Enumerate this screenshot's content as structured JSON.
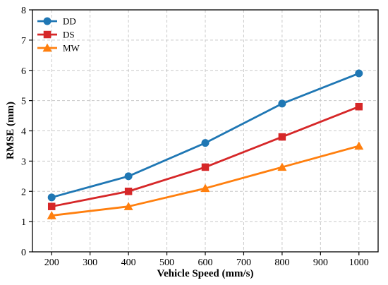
{
  "chart_data": {
    "type": "line",
    "title": "",
    "xlabel": "Vehicle Speed (mm/s)",
    "ylabel": "RMSE (mm)",
    "x": [
      200,
      400,
      600,
      800,
      1000
    ],
    "xlim": [
      150,
      1050
    ],
    "ylim": [
      0,
      8
    ],
    "xticks": [
      200,
      300,
      400,
      500,
      600,
      700,
      800,
      900,
      1000
    ],
    "yticks": [
      0,
      1,
      2,
      3,
      4,
      5,
      6,
      7,
      8
    ],
    "grid": true,
    "legend_position": "top-left",
    "series": [
      {
        "name": "DD",
        "color": "#1f77b4",
        "marker": "circle",
        "values": [
          1.8,
          2.5,
          3.6,
          4.9,
          5.9
        ]
      },
      {
        "name": "DS",
        "color": "#d62728",
        "marker": "square",
        "values": [
          1.5,
          2.0,
          2.8,
          3.8,
          4.8
        ]
      },
      {
        "name": "MW",
        "color": "#ff7f0e",
        "marker": "triangle",
        "values": [
          1.2,
          1.5,
          2.1,
          2.8,
          3.5
        ]
      }
    ]
  }
}
